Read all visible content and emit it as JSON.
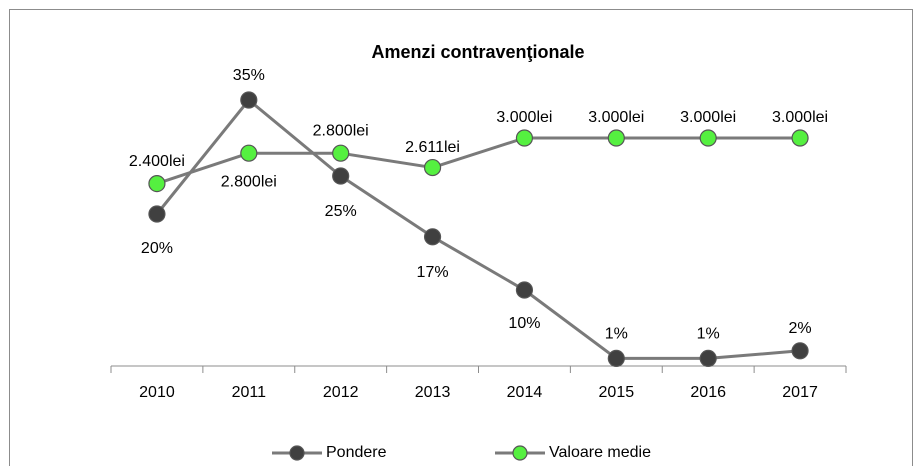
{
  "chart_data": {
    "type": "line",
    "title": "Amenzi contravenţionale",
    "categories": [
      "2010",
      "2011",
      "2012",
      "2013",
      "2014",
      "2015",
      "2016",
      "2017"
    ],
    "series": [
      {
        "name": "Pondere",
        "color": "#404040",
        "values": [
          20,
          35,
          25,
          17,
          10,
          1,
          1,
          2
        ],
        "value_labels": [
          "20%",
          "35%",
          "25%",
          "17%",
          "10%",
          "1%",
          "1%",
          "2%"
        ]
      },
      {
        "name": "Valoare medie",
        "color": "#55f040",
        "axis": "y2",
        "values": [
          2400,
          2800,
          2800,
          2611,
          3000,
          3000,
          3000,
          3000
        ],
        "value_labels": [
          "2.400lei",
          "2.800lei",
          "2.800lei",
          "2.611lei",
          "3.000lei",
          "3.000lei",
          "3.000lei",
          "3.000lei"
        ]
      }
    ],
    "ylim": [
      0,
      40
    ],
    "y2lim": [
      0,
      4000
    ],
    "legend": "bottom"
  }
}
